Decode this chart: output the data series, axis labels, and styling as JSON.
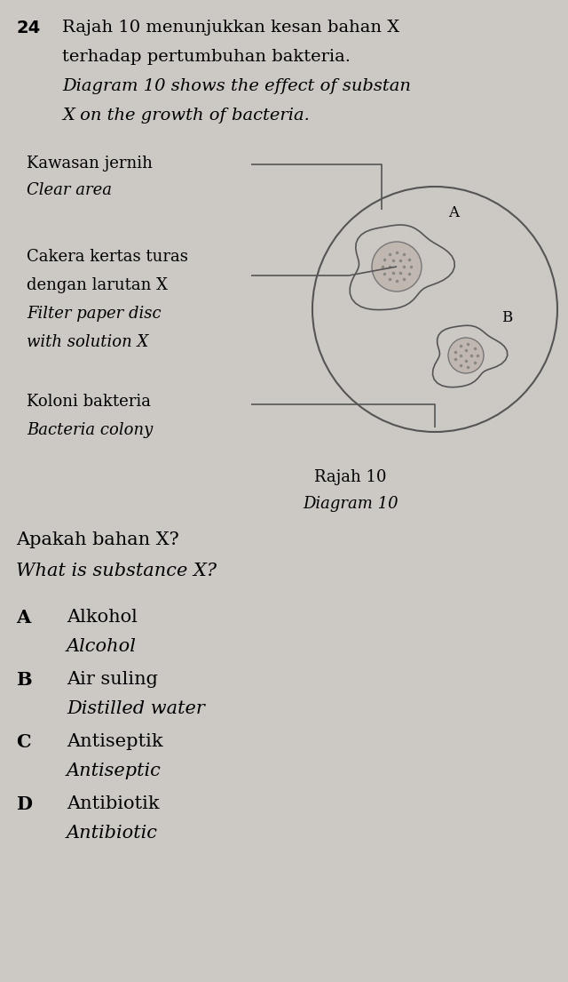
{
  "bg_color": "#ccc8c4",
  "question_number": "24",
  "line1_bold": "Rajah 10 menunjukkan kesan bahan X",
  "line2_bold": "terhadap pertumbuhan bakteria.",
  "line3_italic": "Diagram 10 shows the effect of substan",
  "line4_italic": "X on the growth of bacteria.",
  "label1_normal": "Kawasan jernih",
  "label1_italic": "Clear area",
  "label2_normal": "Cakera kertas turas",
  "label2_normal2": "dengan larutan X",
  "label2_italic": "Filter paper disc",
  "label2_italic2": "with solution X",
  "label3_normal": "Koloni bakteria",
  "label3_italic": "Bacteria colony",
  "diagram_caption1": "Rajah 10",
  "diagram_caption2": "Diagram 10",
  "question_malay": "Apakah bahan X?",
  "question_english": "What is substance X?",
  "options": [
    {
      "letter": "A",
      "malay": "Alkohol",
      "english": "Alcohol"
    },
    {
      "letter": "B",
      "malay": "Air suling",
      "english": "Distilled water"
    },
    {
      "letter": "C",
      "malay": "Antiseptik",
      "english": "Antiseptic"
    },
    {
      "letter": "D",
      "malay": "Antibiotik",
      "english": "Antibiotic"
    }
  ]
}
